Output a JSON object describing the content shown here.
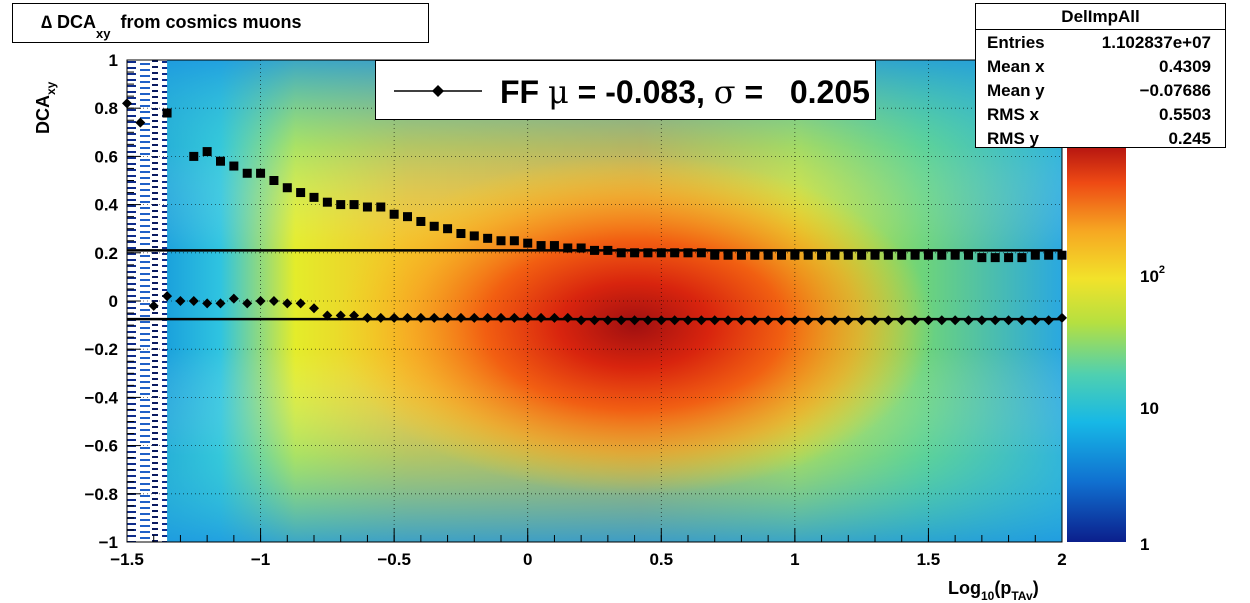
{
  "title": {
    "prefix": "∆ DCA",
    "sub": "xy",
    "suffix": "from cosmics muons"
  },
  "stats": {
    "name": "DelImpAll",
    "rows": [
      {
        "key": "Entries",
        "value": "1.102837e+07"
      },
      {
        "key": "Mean x",
        "value": "0.4309"
      },
      {
        "key": "Mean y",
        "value": "−0.07686"
      },
      {
        "key": "RMS x",
        "value": "0.5503"
      },
      {
        "key": "RMS y",
        "value": "0.245"
      }
    ]
  },
  "legend": {
    "text_before_mu": "FF ",
    "mu_symbol": "μ",
    "text_after_mu": " = -0.083, ",
    "sigma_symbol": "σ",
    "text_after_sigma": " =   0.205"
  },
  "axes": {
    "ylabel_main": "DCA",
    "ylabel_sub": "xy",
    "xlabel_main": "Log",
    "xlabel_sub1": "10",
    "xlabel_mid": "(p",
    "xlabel_sub2": "TAv",
    "xlabel_end": ")"
  },
  "chart_data": {
    "type": "heatmap",
    "title": "∆ DCA_xy from cosmics muons",
    "xlabel": "Log10(pTAv)",
    "ylabel": "DCA_xy",
    "xlim": [
      -1.5,
      2
    ],
    "ylim": [
      -1,
      1
    ],
    "x_ticks": [
      "−1.5",
      "−1",
      "−0.5",
      "0",
      "0.5",
      "1",
      "1.5",
      "2"
    ],
    "y_ticks": [
      "−1",
      "−0.8",
      "−0.6",
      "−0.4",
      "−0.2",
      "0",
      "0.2",
      "0.4",
      "0.6",
      "0.8",
      "1"
    ],
    "z_scale": "log",
    "z_ticks": [
      "1",
      "10",
      "10^2"
    ],
    "grid": true,
    "fit_lines": [
      {
        "name": "mu",
        "y": -0.075
      },
      {
        "name": "sigma",
        "y": 0.21
      }
    ],
    "series": [
      {
        "name": "sigma",
        "marker": "square",
        "x": [
          -1.35,
          -1.25,
          -1.2,
          -1.15,
          -1.1,
          -1.05,
          -1.0,
          -0.95,
          -0.9,
          -0.85,
          -0.8,
          -0.75,
          -0.7,
          -0.65,
          -0.6,
          -0.55,
          -0.5,
          -0.45,
          -0.4,
          -0.35,
          -0.3,
          -0.25,
          -0.2,
          -0.15,
          -0.1,
          -0.05,
          0.0,
          0.05,
          0.1,
          0.15,
          0.2,
          0.25,
          0.3,
          0.35,
          0.4,
          0.45,
          0.5,
          0.55,
          0.6,
          0.65,
          0.7,
          0.75,
          0.8,
          0.85,
          0.9,
          0.95,
          1.0,
          1.05,
          1.1,
          1.15,
          1.2,
          1.25,
          1.3,
          1.35,
          1.4,
          1.45,
          1.5,
          1.55,
          1.6,
          1.65,
          1.7,
          1.75,
          1.8,
          1.85,
          1.9,
          1.95,
          2.0
        ],
        "values": [
          0.78,
          0.6,
          0.62,
          0.58,
          0.56,
          0.53,
          0.53,
          0.5,
          0.47,
          0.45,
          0.43,
          0.41,
          0.4,
          0.4,
          0.39,
          0.39,
          0.36,
          0.35,
          0.33,
          0.31,
          0.3,
          0.28,
          0.27,
          0.26,
          0.25,
          0.25,
          0.24,
          0.23,
          0.23,
          0.22,
          0.22,
          0.21,
          0.21,
          0.2,
          0.2,
          0.2,
          0.2,
          0.2,
          0.2,
          0.2,
          0.19,
          0.19,
          0.19,
          0.19,
          0.19,
          0.19,
          0.19,
          0.19,
          0.19,
          0.19,
          0.19,
          0.19,
          0.19,
          0.19,
          0.19,
          0.19,
          0.19,
          0.19,
          0.19,
          0.19,
          0.18,
          0.18,
          0.18,
          0.18,
          0.19,
          0.19,
          0.19
        ]
      },
      {
        "name": "mu",
        "marker": "diamond",
        "x": [
          -1.5,
          -1.45,
          -1.4,
          -1.35,
          -1.3,
          -1.25,
          -1.2,
          -1.15,
          -1.1,
          -1.05,
          -1.0,
          -0.95,
          -0.9,
          -0.85,
          -0.8,
          -0.75,
          -0.7,
          -0.65,
          -0.6,
          -0.55,
          -0.5,
          -0.45,
          -0.4,
          -0.35,
          -0.3,
          -0.25,
          -0.2,
          -0.15,
          -0.1,
          -0.05,
          0.0,
          0.05,
          0.1,
          0.15,
          0.2,
          0.25,
          0.3,
          0.35,
          0.4,
          0.45,
          0.5,
          0.55,
          0.6,
          0.65,
          0.7,
          0.75,
          0.8,
          0.85,
          0.9,
          0.95,
          1.0,
          1.05,
          1.1,
          1.15,
          1.2,
          1.25,
          1.3,
          1.35,
          1.4,
          1.45,
          1.5,
          1.55,
          1.6,
          1.65,
          1.7,
          1.75,
          1.8,
          1.85,
          1.9,
          1.95,
          2.0
        ],
        "values": [
          0.82,
          0.74,
          -0.02,
          0.02,
          0.0,
          0.0,
          -0.01,
          -0.01,
          0.01,
          -0.01,
          0.0,
          0.0,
          -0.01,
          -0.01,
          -0.03,
          -0.06,
          -0.06,
          -0.06,
          -0.07,
          -0.07,
          -0.07,
          -0.07,
          -0.07,
          -0.07,
          -0.07,
          -0.07,
          -0.07,
          -0.07,
          -0.07,
          -0.07,
          -0.07,
          -0.07,
          -0.07,
          -0.07,
          -0.08,
          -0.08,
          -0.08,
          -0.08,
          -0.08,
          -0.08,
          -0.08,
          -0.08,
          -0.08,
          -0.08,
          -0.08,
          -0.08,
          -0.08,
          -0.08,
          -0.08,
          -0.08,
          -0.08,
          -0.08,
          -0.08,
          -0.08,
          -0.08,
          -0.08,
          -0.08,
          -0.08,
          -0.08,
          -0.08,
          -0.08,
          -0.08,
          -0.08,
          -0.08,
          -0.08,
          -0.08,
          -0.08,
          -0.08,
          -0.08,
          -0.08,
          -0.07
        ]
      }
    ]
  }
}
